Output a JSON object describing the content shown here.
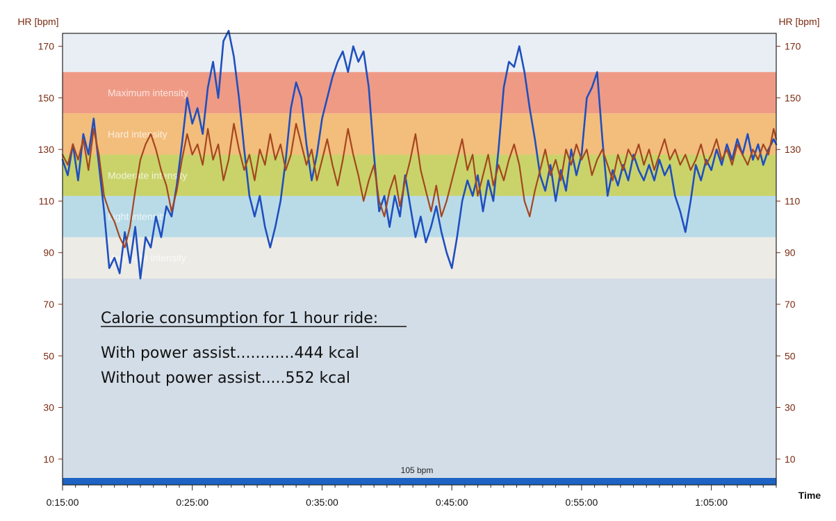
{
  "chart_data": {
    "type": "line",
    "ylabel_left": "HR [bpm]",
    "ylabel_right": "HR [bpm]",
    "xlabel": "Time",
    "ylim": [
      0,
      175
    ],
    "yticks": [
      10,
      30,
      50,
      70,
      90,
      110,
      130,
      150,
      170
    ],
    "xlim_min": [
      15,
      70
    ],
    "xticks": [
      {
        "label": "0:15:00",
        "min": 15
      },
      {
        "label": "0:25:00",
        "min": 25
      },
      {
        "label": "0:35:00",
        "min": 35
      },
      {
        "label": "0:45:00",
        "min": 45
      },
      {
        "label": "0:55:00",
        "min": 55
      },
      {
        "label": "1:05:00",
        "min": 65
      }
    ],
    "zones": [
      {
        "label": "Maximum intensity",
        "from": 144,
        "to": 160,
        "color": "#ef9a85"
      },
      {
        "label": "Hard intensity",
        "from": 128,
        "to": 144,
        "color": "#f3bd7c"
      },
      {
        "label": "Moderate intensity",
        "from": 112,
        "to": 128,
        "color": "#c9d36a"
      },
      {
        "label": "Light intensity",
        "from": 96,
        "to": 112,
        "color": "#b9dbe8"
      },
      {
        "label": "Very light intensity",
        "from": 80,
        "to": 96,
        "color": "#ecebe6"
      }
    ],
    "upper_band_color": "#e8eef4",
    "lower_band_color": "#d3dde7",
    "bottom_bar": {
      "label": "105 bpm",
      "color": "#1c63c4"
    },
    "series": [
      {
        "color": "#1f4fbf",
        "points": [
          [
            15,
            126
          ],
          [
            15.4,
            120
          ],
          [
            15.8,
            132
          ],
          [
            16.2,
            118
          ],
          [
            16.6,
            136
          ],
          [
            17,
            128
          ],
          [
            17.4,
            142
          ],
          [
            17.8,
            124
          ],
          [
            18.2,
            106
          ],
          [
            18.6,
            84
          ],
          [
            19,
            88
          ],
          [
            19.4,
            82
          ],
          [
            19.8,
            98
          ],
          [
            20.2,
            86
          ],
          [
            20.6,
            100
          ],
          [
            21,
            80
          ],
          [
            21.4,
            96
          ],
          [
            21.8,
            92
          ],
          [
            22.2,
            104
          ],
          [
            22.6,
            96
          ],
          [
            23,
            108
          ],
          [
            23.4,
            104
          ],
          [
            23.8,
            116
          ],
          [
            24.2,
            132
          ],
          [
            24.6,
            150
          ],
          [
            25,
            140
          ],
          [
            25.4,
            146
          ],
          [
            25.8,
            136
          ],
          [
            26.2,
            154
          ],
          [
            26.6,
            164
          ],
          [
            27,
            150
          ],
          [
            27.4,
            172
          ],
          [
            27.8,
            176
          ],
          [
            28.2,
            166
          ],
          [
            28.6,
            150
          ],
          [
            29,
            130
          ],
          [
            29.4,
            112
          ],
          [
            29.8,
            104
          ],
          [
            30.2,
            112
          ],
          [
            30.6,
            100
          ],
          [
            31,
            92
          ],
          [
            31.4,
            100
          ],
          [
            31.8,
            110
          ],
          [
            32.2,
            126
          ],
          [
            32.6,
            146
          ],
          [
            33,
            156
          ],
          [
            33.4,
            150
          ],
          [
            33.8,
            132
          ],
          [
            34.2,
            118
          ],
          [
            34.6,
            128
          ],
          [
            35,
            142
          ],
          [
            35.4,
            150
          ],
          [
            35.8,
            158
          ],
          [
            36.2,
            164
          ],
          [
            36.6,
            168
          ],
          [
            37,
            160
          ],
          [
            37.4,
            170
          ],
          [
            37.8,
            164
          ],
          [
            38.2,
            168
          ],
          [
            38.6,
            154
          ],
          [
            39,
            128
          ],
          [
            39.4,
            106
          ],
          [
            39.8,
            112
          ],
          [
            40.2,
            100
          ],
          [
            40.6,
            112
          ],
          [
            41,
            104
          ],
          [
            41.4,
            120
          ],
          [
            41.8,
            108
          ],
          [
            42.2,
            96
          ],
          [
            42.6,
            104
          ],
          [
            43,
            94
          ],
          [
            43.4,
            100
          ],
          [
            43.8,
            108
          ],
          [
            44.2,
            98
          ],
          [
            44.6,
            90
          ],
          [
            45,
            84
          ],
          [
            45.4,
            96
          ],
          [
            45.8,
            110
          ],
          [
            46.2,
            118
          ],
          [
            46.6,
            112
          ],
          [
            47,
            120
          ],
          [
            47.4,
            106
          ],
          [
            47.8,
            118
          ],
          [
            48.2,
            110
          ],
          [
            48.6,
            130
          ],
          [
            49,
            154
          ],
          [
            49.4,
            164
          ],
          [
            49.8,
            162
          ],
          [
            50.2,
            170
          ],
          [
            50.6,
            160
          ],
          [
            51,
            146
          ],
          [
            51.4,
            134
          ],
          [
            51.8,
            120
          ],
          [
            52.2,
            114
          ],
          [
            52.6,
            124
          ],
          [
            53,
            110
          ],
          [
            53.4,
            122
          ],
          [
            53.8,
            114
          ],
          [
            54.2,
            130
          ],
          [
            54.6,
            120
          ],
          [
            55,
            128
          ],
          [
            55.4,
            150
          ],
          [
            55.8,
            154
          ],
          [
            56.2,
            160
          ],
          [
            56.6,
            134
          ],
          [
            57,
            112
          ],
          [
            57.4,
            122
          ],
          [
            57.8,
            116
          ],
          [
            58.2,
            124
          ],
          [
            58.6,
            118
          ],
          [
            59,
            128
          ],
          [
            59.4,
            122
          ],
          [
            59.8,
            118
          ],
          [
            60.2,
            124
          ],
          [
            60.6,
            118
          ],
          [
            61,
            126
          ],
          [
            61.4,
            120
          ],
          [
            61.8,
            124
          ],
          [
            62.2,
            112
          ],
          [
            62.6,
            106
          ],
          [
            63,
            98
          ],
          [
            63.4,
            110
          ],
          [
            63.8,
            124
          ],
          [
            64.2,
            118
          ],
          [
            64.6,
            126
          ],
          [
            65,
            122
          ],
          [
            65.4,
            130
          ],
          [
            65.8,
            124
          ],
          [
            66.2,
            132
          ],
          [
            66.6,
            126
          ],
          [
            67,
            134
          ],
          [
            67.4,
            128
          ],
          [
            67.8,
            136
          ],
          [
            68.2,
            126
          ],
          [
            68.6,
            132
          ],
          [
            69,
            124
          ],
          [
            69.4,
            130
          ],
          [
            69.8,
            134
          ],
          [
            70,
            132
          ]
        ]
      },
      {
        "color": "#a4461e",
        "points": [
          [
            15,
            128
          ],
          [
            15.4,
            124
          ],
          [
            15.8,
            132
          ],
          [
            16.2,
            126
          ],
          [
            16.6,
            134
          ],
          [
            17,
            122
          ],
          [
            17.4,
            138
          ],
          [
            17.8,
            128
          ],
          [
            18.2,
            112
          ],
          [
            18.6,
            106
          ],
          [
            19,
            102
          ],
          [
            19.4,
            96
          ],
          [
            19.8,
            92
          ],
          [
            20.2,
            100
          ],
          [
            20.6,
            114
          ],
          [
            21,
            126
          ],
          [
            21.4,
            132
          ],
          [
            21.8,
            136
          ],
          [
            22.2,
            130
          ],
          [
            22.6,
            122
          ],
          [
            23,
            116
          ],
          [
            23.4,
            106
          ],
          [
            23.8,
            114
          ],
          [
            24.2,
            126
          ],
          [
            24.6,
            136
          ],
          [
            25,
            128
          ],
          [
            25.4,
            132
          ],
          [
            25.8,
            124
          ],
          [
            26.2,
            138
          ],
          [
            26.6,
            126
          ],
          [
            27,
            132
          ],
          [
            27.4,
            118
          ],
          [
            27.8,
            126
          ],
          [
            28.2,
            140
          ],
          [
            28.6,
            130
          ],
          [
            29,
            122
          ],
          [
            29.4,
            128
          ],
          [
            29.8,
            118
          ],
          [
            30.2,
            130
          ],
          [
            30.6,
            124
          ],
          [
            31,
            136
          ],
          [
            31.4,
            126
          ],
          [
            31.8,
            132
          ],
          [
            32.2,
            122
          ],
          [
            32.6,
            128
          ],
          [
            33,
            140
          ],
          [
            33.4,
            132
          ],
          [
            33.8,
            124
          ],
          [
            34.2,
            130
          ],
          [
            34.6,
            118
          ],
          [
            35,
            126
          ],
          [
            35.4,
            134
          ],
          [
            35.8,
            124
          ],
          [
            36.2,
            116
          ],
          [
            36.6,
            126
          ],
          [
            37,
            138
          ],
          [
            37.4,
            128
          ],
          [
            37.8,
            120
          ],
          [
            38.2,
            110
          ],
          [
            38.6,
            118
          ],
          [
            39,
            124
          ],
          [
            39.4,
            110
          ],
          [
            39.8,
            104
          ],
          [
            40.2,
            114
          ],
          [
            40.6,
            120
          ],
          [
            41,
            108
          ],
          [
            41.4,
            118
          ],
          [
            41.8,
            126
          ],
          [
            42.2,
            136
          ],
          [
            42.6,
            122
          ],
          [
            43,
            114
          ],
          [
            43.4,
            106
          ],
          [
            43.8,
            116
          ],
          [
            44.2,
            104
          ],
          [
            44.6,
            110
          ],
          [
            45,
            118
          ],
          [
            45.4,
            126
          ],
          [
            45.8,
            134
          ],
          [
            46.2,
            122
          ],
          [
            46.6,
            128
          ],
          [
            47,
            112
          ],
          [
            47.4,
            120
          ],
          [
            47.8,
            128
          ],
          [
            48.2,
            116
          ],
          [
            48.6,
            124
          ],
          [
            49,
            118
          ],
          [
            49.4,
            126
          ],
          [
            49.8,
            132
          ],
          [
            50.2,
            124
          ],
          [
            50.6,
            110
          ],
          [
            51,
            104
          ],
          [
            51.4,
            114
          ],
          [
            51.8,
            122
          ],
          [
            52.2,
            130
          ],
          [
            52.6,
            120
          ],
          [
            53,
            126
          ],
          [
            53.4,
            118
          ],
          [
            53.8,
            130
          ],
          [
            54.2,
            124
          ],
          [
            54.6,
            132
          ],
          [
            55,
            126
          ],
          [
            55.4,
            130
          ],
          [
            55.8,
            120
          ],
          [
            56.2,
            126
          ],
          [
            56.6,
            130
          ],
          [
            57,
            124
          ],
          [
            57.4,
            118
          ],
          [
            57.8,
            128
          ],
          [
            58.2,
            122
          ],
          [
            58.6,
            130
          ],
          [
            59,
            126
          ],
          [
            59.4,
            132
          ],
          [
            59.8,
            124
          ],
          [
            60.2,
            130
          ],
          [
            60.6,
            122
          ],
          [
            61,
            128
          ],
          [
            61.4,
            134
          ],
          [
            61.8,
            126
          ],
          [
            62.2,
            130
          ],
          [
            62.6,
            124
          ],
          [
            63,
            128
          ],
          [
            63.4,
            122
          ],
          [
            63.8,
            126
          ],
          [
            64.2,
            132
          ],
          [
            64.6,
            124
          ],
          [
            65,
            128
          ],
          [
            65.4,
            134
          ],
          [
            65.8,
            126
          ],
          [
            66.2,
            130
          ],
          [
            66.6,
            124
          ],
          [
            67,
            132
          ],
          [
            67.4,
            128
          ],
          [
            67.8,
            124
          ],
          [
            68.2,
            130
          ],
          [
            68.6,
            126
          ],
          [
            69,
            132
          ],
          [
            69.4,
            128
          ],
          [
            69.8,
            138
          ],
          [
            70,
            134
          ]
        ]
      }
    ]
  },
  "note": {
    "heading": "Calorie consumption for 1 hour ride:",
    "line1": "With power assist............444 kcal",
    "line2": "Without power assist.....552 kcal"
  }
}
